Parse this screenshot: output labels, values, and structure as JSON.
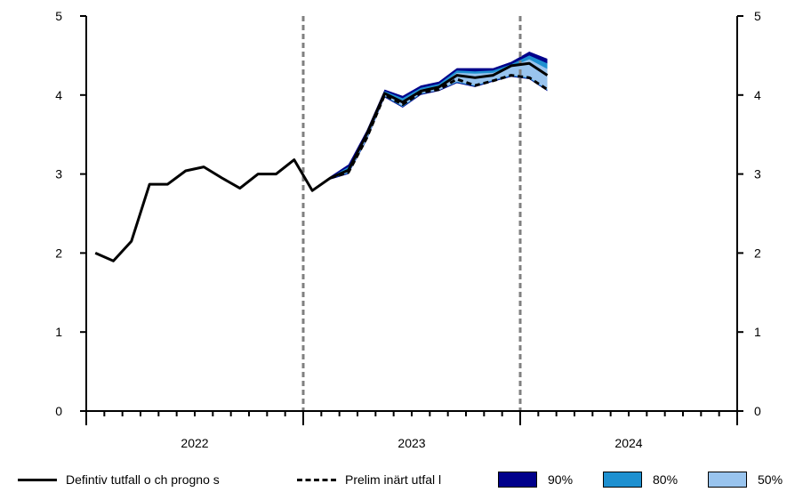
{
  "chart_data": {
    "type": "line",
    "title": "",
    "xlabel": "",
    "ylabel": "",
    "ylim": [
      0,
      5
    ],
    "y_ticks": [
      0,
      1,
      2,
      3,
      4,
      5
    ],
    "x_range": [
      0,
      36
    ],
    "year_labels": [
      {
        "label": "2022",
        "center": 6
      },
      {
        "label": "2023",
        "center": 18
      },
      {
        "label": "2024",
        "center": 30
      }
    ],
    "year_boundaries": [
      0,
      12,
      24,
      36
    ],
    "vertical_reference_lines": [
      12,
      24
    ],
    "grid": false,
    "legend_position": "bottom",
    "series": [
      {
        "name": "Defintiv utfall och prognos",
        "style": "solid",
        "color": "#000000",
        "points": [
          [
            0.5,
            2.0
          ],
          [
            1.5,
            1.9
          ],
          [
            2.5,
            2.15
          ],
          [
            3.5,
            2.87
          ],
          [
            4.5,
            2.87
          ],
          [
            5.5,
            3.04
          ],
          [
            6.5,
            3.09
          ],
          [
            7.5,
            2.95
          ],
          [
            8.5,
            2.82
          ],
          [
            9.5,
            3.0
          ],
          [
            10.5,
            3.0
          ],
          [
            11.5,
            3.18
          ],
          [
            12.5,
            2.79
          ],
          [
            13.5,
            2.95
          ],
          [
            14.5,
            3.05
          ],
          [
            15.5,
            3.5
          ],
          [
            16.5,
            4.02
          ],
          [
            17.5,
            3.91
          ],
          [
            18.5,
            4.05
          ],
          [
            19.5,
            4.1
          ],
          [
            20.5,
            4.25
          ],
          [
            21.5,
            4.22
          ],
          [
            22.5,
            4.25
          ],
          [
            23.5,
            4.37
          ],
          [
            24.5,
            4.4
          ],
          [
            25.5,
            4.25
          ]
        ]
      },
      {
        "name": "Preliminärt utfall",
        "style": "dashed",
        "color": "#000000",
        "points": [
          [
            13.5,
            2.95
          ],
          [
            14.5,
            3.02
          ],
          [
            15.5,
            3.45
          ],
          [
            16.5,
            4.0
          ],
          [
            17.5,
            3.88
          ],
          [
            18.5,
            4.03
          ],
          [
            19.5,
            4.07
          ],
          [
            20.5,
            4.2
          ],
          [
            21.5,
            4.12
          ],
          [
            22.5,
            4.18
          ],
          [
            23.5,
            4.25
          ],
          [
            24.5,
            4.22
          ],
          [
            25.5,
            4.07
          ]
        ]
      }
    ],
    "bands": [
      {
        "name": "90%",
        "color": "#00008b",
        "x": [
          13.5,
          14.5,
          15.5,
          16.5,
          17.5,
          18.5,
          19.5,
          20.5,
          21.5,
          22.5,
          23.5,
          24.5,
          25.5
        ],
        "upper": [
          2.97,
          3.12,
          3.55,
          4.07,
          3.99,
          4.12,
          4.17,
          4.34,
          4.34,
          4.34,
          4.42,
          4.55,
          4.46
        ],
        "lower": [
          2.93,
          3.0,
          3.42,
          3.97,
          3.84,
          4.0,
          4.05,
          4.15,
          4.1,
          4.17,
          4.23,
          4.2,
          4.05
        ]
      },
      {
        "name": "80%",
        "color": "#1e90d0",
        "x": [
          13.5,
          14.5,
          15.5,
          16.5,
          17.5,
          18.5,
          19.5,
          20.5,
          21.5,
          22.5,
          23.5,
          24.5,
          25.5
        ],
        "upper": [
          2.96,
          3.09,
          3.52,
          4.05,
          3.96,
          4.09,
          4.14,
          4.31,
          4.3,
          4.31,
          4.39,
          4.5,
          4.4
        ],
        "lower": [
          2.94,
          3.01,
          3.43,
          3.98,
          3.85,
          4.01,
          4.06,
          4.16,
          4.11,
          4.18,
          4.24,
          4.21,
          4.06
        ]
      },
      {
        "name": "50%",
        "color": "#99c4ee",
        "x": [
          13.5,
          14.5,
          15.5,
          16.5,
          17.5,
          18.5,
          19.5,
          20.5,
          21.5,
          22.5,
          23.5,
          24.5,
          25.5
        ],
        "upper": [
          2.955,
          3.06,
          3.5,
          4.03,
          3.93,
          4.07,
          4.11,
          4.28,
          4.27,
          4.28,
          4.36,
          4.45,
          4.33
        ],
        "lower": [
          2.945,
          3.02,
          3.44,
          3.99,
          3.86,
          4.02,
          4.06,
          4.17,
          4.12,
          4.19,
          4.25,
          4.22,
          4.07
        ]
      }
    ]
  },
  "legend": {
    "items": [
      {
        "label": "Defintiv tutfall o ch progno s",
        "kind": "line"
      },
      {
        "label": "Prelim inärt utfal l",
        "kind": "dashed"
      },
      {
        "label": "90%",
        "kind": "box",
        "color": "#00008b"
      },
      {
        "label": "80%",
        "kind": "box",
        "color": "#1e90d0"
      },
      {
        "label": "50%",
        "kind": "box",
        "color": "#99c4ee"
      }
    ]
  }
}
